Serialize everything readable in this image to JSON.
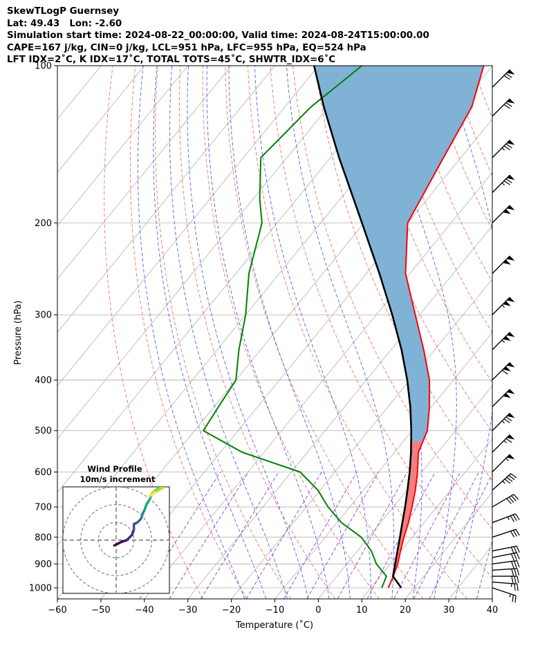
{
  "header": {
    "line1": "SkewTLogP Guernsey",
    "line2": "Lat: 49.43   Lon: -2.60",
    "line3": "Simulation start time: 2024-08-22_00:00:00, Valid time: 2024-08-24T15:00:00.00",
    "line4": "CAPE=167 j/kg, CIN=0 j/kg, LCL=951 hPa, LFC=955 hPa, EQ=524 hPa",
    "line5": "LFT IDX=2˚C, K IDX=17˚C, TOTAL TOTS=45˚C, SHWTR_IDX=6˚C"
  },
  "chart_data": [
    {
      "type": "line",
      "subtype": "skew-t log-p",
      "xlabel": "Temperature (˚C)",
      "ylabel": "Pressure (hPa)",
      "xlim": [
        -60,
        40
      ],
      "ylim": [
        1050,
        100
      ],
      "y_scale": "log",
      "skewed_isotherms": true,
      "x_ticks": [
        "−60",
        "−50",
        "−40",
        "−30",
        "−20",
        "−10",
        "0",
        "10",
        "20",
        "30",
        "40"
      ],
      "x_tick_values": [
        -60,
        -50,
        -40,
        -30,
        -20,
        -10,
        0,
        10,
        20,
        30,
        40
      ],
      "y_ticks": [
        "100",
        "200",
        "300",
        "400",
        "500",
        "600",
        "700",
        "800",
        "900",
        "1000"
      ],
      "y_tick_values": [
        100,
        200,
        300,
        400,
        500,
        600,
        700,
        800,
        900,
        1000
      ],
      "grid": true,
      "colors": {
        "temperature": "#ff0000",
        "dewpoint": "#008000",
        "parcel": "#000000",
        "cape_fill": "#7fb2d5",
        "cin_fill": "#f08080",
        "dry_adiabat": "#f07070",
        "moist_adiabat": "#5a5af0",
        "mixing_ratio": "#9040c0",
        "isotherm": "#b0b0b0"
      },
      "series": [
        {
          "key": "temperature",
          "points": [
            {
              "p": 1000,
              "t": 14.0
            },
            {
              "p": 950,
              "t": 13.0
            },
            {
              "p": 900,
              "t": 11.7
            },
            {
              "p": 850,
              "t": 9.9
            },
            {
              "p": 800,
              "t": 8.1
            },
            {
              "p": 750,
              "t": 6.4
            },
            {
              "p": 700,
              "t": 4.3
            },
            {
              "p": 650,
              "t": 1.9
            },
            {
              "p": 600,
              "t": -1.0
            },
            {
              "p": 550,
              "t": -4.5
            },
            {
              "p": 500,
              "t": -6.5
            },
            {
              "p": 450,
              "t": -10.5
            },
            {
              "p": 400,
              "t": -15.5
            },
            {
              "p": 350,
              "t": -22.5
            },
            {
              "p": 300,
              "t": -31.0
            },
            {
              "p": 250,
              "t": -41.0
            },
            {
              "p": 200,
              "t": -50.0
            },
            {
              "p": 150,
              "t": -54.0
            },
            {
              "p": 120,
              "t": -57.0
            },
            {
              "p": 100,
              "t": -62.0
            }
          ]
        },
        {
          "key": "dewpoint",
          "points": [
            {
              "p": 1000,
              "t": 12.5
            },
            {
              "p": 950,
              "t": 11.4
            },
            {
              "p": 900,
              "t": 6.8
            },
            {
              "p": 850,
              "t": 3.2
            },
            {
              "p": 800,
              "t": -1.7
            },
            {
              "p": 750,
              "t": -9.0
            },
            {
              "p": 700,
              "t": -15.0
            },
            {
              "p": 650,
              "t": -20.5
            },
            {
              "p": 600,
              "t": -28.0
            },
            {
              "p": 550,
              "t": -45.0
            },
            {
              "p": 500,
              "t": -58.0
            },
            {
              "p": 450,
              "t": -59.0
            },
            {
              "p": 400,
              "t": -60.0
            },
            {
              "p": 350,
              "t": -65.0
            },
            {
              "p": 300,
              "t": -70.0
            },
            {
              "p": 250,
              "t": -77.0
            },
            {
              "p": 200,
              "t": -83.5
            },
            {
              "p": 180,
              "t": -88.5
            },
            {
              "p": 150,
              "t": -96.0
            },
            {
              "p": 120,
              "t": -94.0
            },
            {
              "p": 100,
              "t": -90.0
            }
          ]
        },
        {
          "key": "parcel",
          "points": [
            {
              "p": 1000,
              "t": 17.0
            },
            {
              "p": 950,
              "t": 12.9
            },
            {
              "p": 900,
              "t": 11.1
            },
            {
              "p": 850,
              "t": 9.2
            },
            {
              "p": 800,
              "t": 7.2
            },
            {
              "p": 750,
              "t": 5.0
            },
            {
              "p": 700,
              "t": 2.7
            },
            {
              "p": 650,
              "t": 0.1
            },
            {
              "p": 600,
              "t": -2.8
            },
            {
              "p": 550,
              "t": -6.2
            },
            {
              "p": 500,
              "t": -10.2
            },
            {
              "p": 450,
              "t": -14.9
            },
            {
              "p": 400,
              "t": -20.6
            },
            {
              "p": 350,
              "t": -27.6
            },
            {
              "p": 300,
              "t": -36.3
            },
            {
              "p": 250,
              "t": -47.0
            },
            {
              "p": 200,
              "t": -60.5
            },
            {
              "p": 150,
              "t": -78.0
            },
            {
              "p": 120,
              "t": -91.0
            },
            {
              "p": 100,
              "t": -101.0
            }
          ]
        }
      ],
      "wind_barbs": [
        {
          "p": 1000,
          "u": -12,
          "v": 4
        },
        {
          "p": 975,
          "u": -14,
          "v": 1
        },
        {
          "p": 950,
          "u": -15,
          "v": 0
        },
        {
          "p": 925,
          "u": -15,
          "v": -1
        },
        {
          "p": 900,
          "u": -15,
          "v": -2
        },
        {
          "p": 875,
          "u": -15,
          "v": -3
        },
        {
          "p": 850,
          "u": -15,
          "v": -3
        },
        {
          "p": 800,
          "u": -15,
          "v": -5
        },
        {
          "p": 750,
          "u": -16,
          "v": -6
        },
        {
          "p": 700,
          "u": -17,
          "v": -10
        },
        {
          "p": 650,
          "u": -18,
          "v": -16
        },
        {
          "p": 600,
          "u": -20,
          "v": -20
        },
        {
          "p": 550,
          "u": -24,
          "v": -24
        },
        {
          "p": 500,
          "u": -28,
          "v": -28
        },
        {
          "p": 450,
          "u": -36,
          "v": -36
        },
        {
          "p": 400,
          "u": -40,
          "v": -40
        },
        {
          "p": 350,
          "u": -38,
          "v": -38
        },
        {
          "p": 300,
          "u": -38,
          "v": -38
        },
        {
          "p": 250,
          "u": -37,
          "v": -37
        },
        {
          "p": 200,
          "u": -36,
          "v": -36
        },
        {
          "p": 175,
          "u": -28,
          "v": -28
        },
        {
          "p": 150,
          "u": -27,
          "v": -27
        },
        {
          "p": 125,
          "u": -26,
          "v": -26
        },
        {
          "p": 110,
          "u": -25,
          "v": -25
        }
      ]
    },
    {
      "type": "line",
      "subtype": "hodograph",
      "title": "Wind Profile",
      "subtitle": "10m/s increment",
      "ring_increment": 10,
      "rings": [
        10,
        20,
        30
      ],
      "xlim": [
        -30,
        30
      ],
      "ylim": [
        -30,
        30
      ],
      "colormap": "viridis",
      "points": [
        {
          "u": -1,
          "v": -3
        },
        {
          "u": 3,
          "v": -1
        },
        {
          "u": 6,
          "v": 0
        },
        {
          "u": 9,
          "v": 3
        },
        {
          "u": 10,
          "v": 6
        },
        {
          "u": 10,
          "v": 9
        },
        {
          "u": 12,
          "v": 10
        },
        {
          "u": 14,
          "v": 12
        },
        {
          "u": 15,
          "v": 15
        },
        {
          "u": 16,
          "v": 17
        },
        {
          "u": 17,
          "v": 20
        },
        {
          "u": 19,
          "v": 23
        },
        {
          "u": 20,
          "v": 26
        },
        {
          "u": 22,
          "v": 28
        },
        {
          "u": 25,
          "v": 30
        },
        {
          "u": 27,
          "v": 30
        },
        {
          "u": 22,
          "v": 27
        },
        {
          "u": 19,
          "v": 25
        }
      ]
    }
  ]
}
